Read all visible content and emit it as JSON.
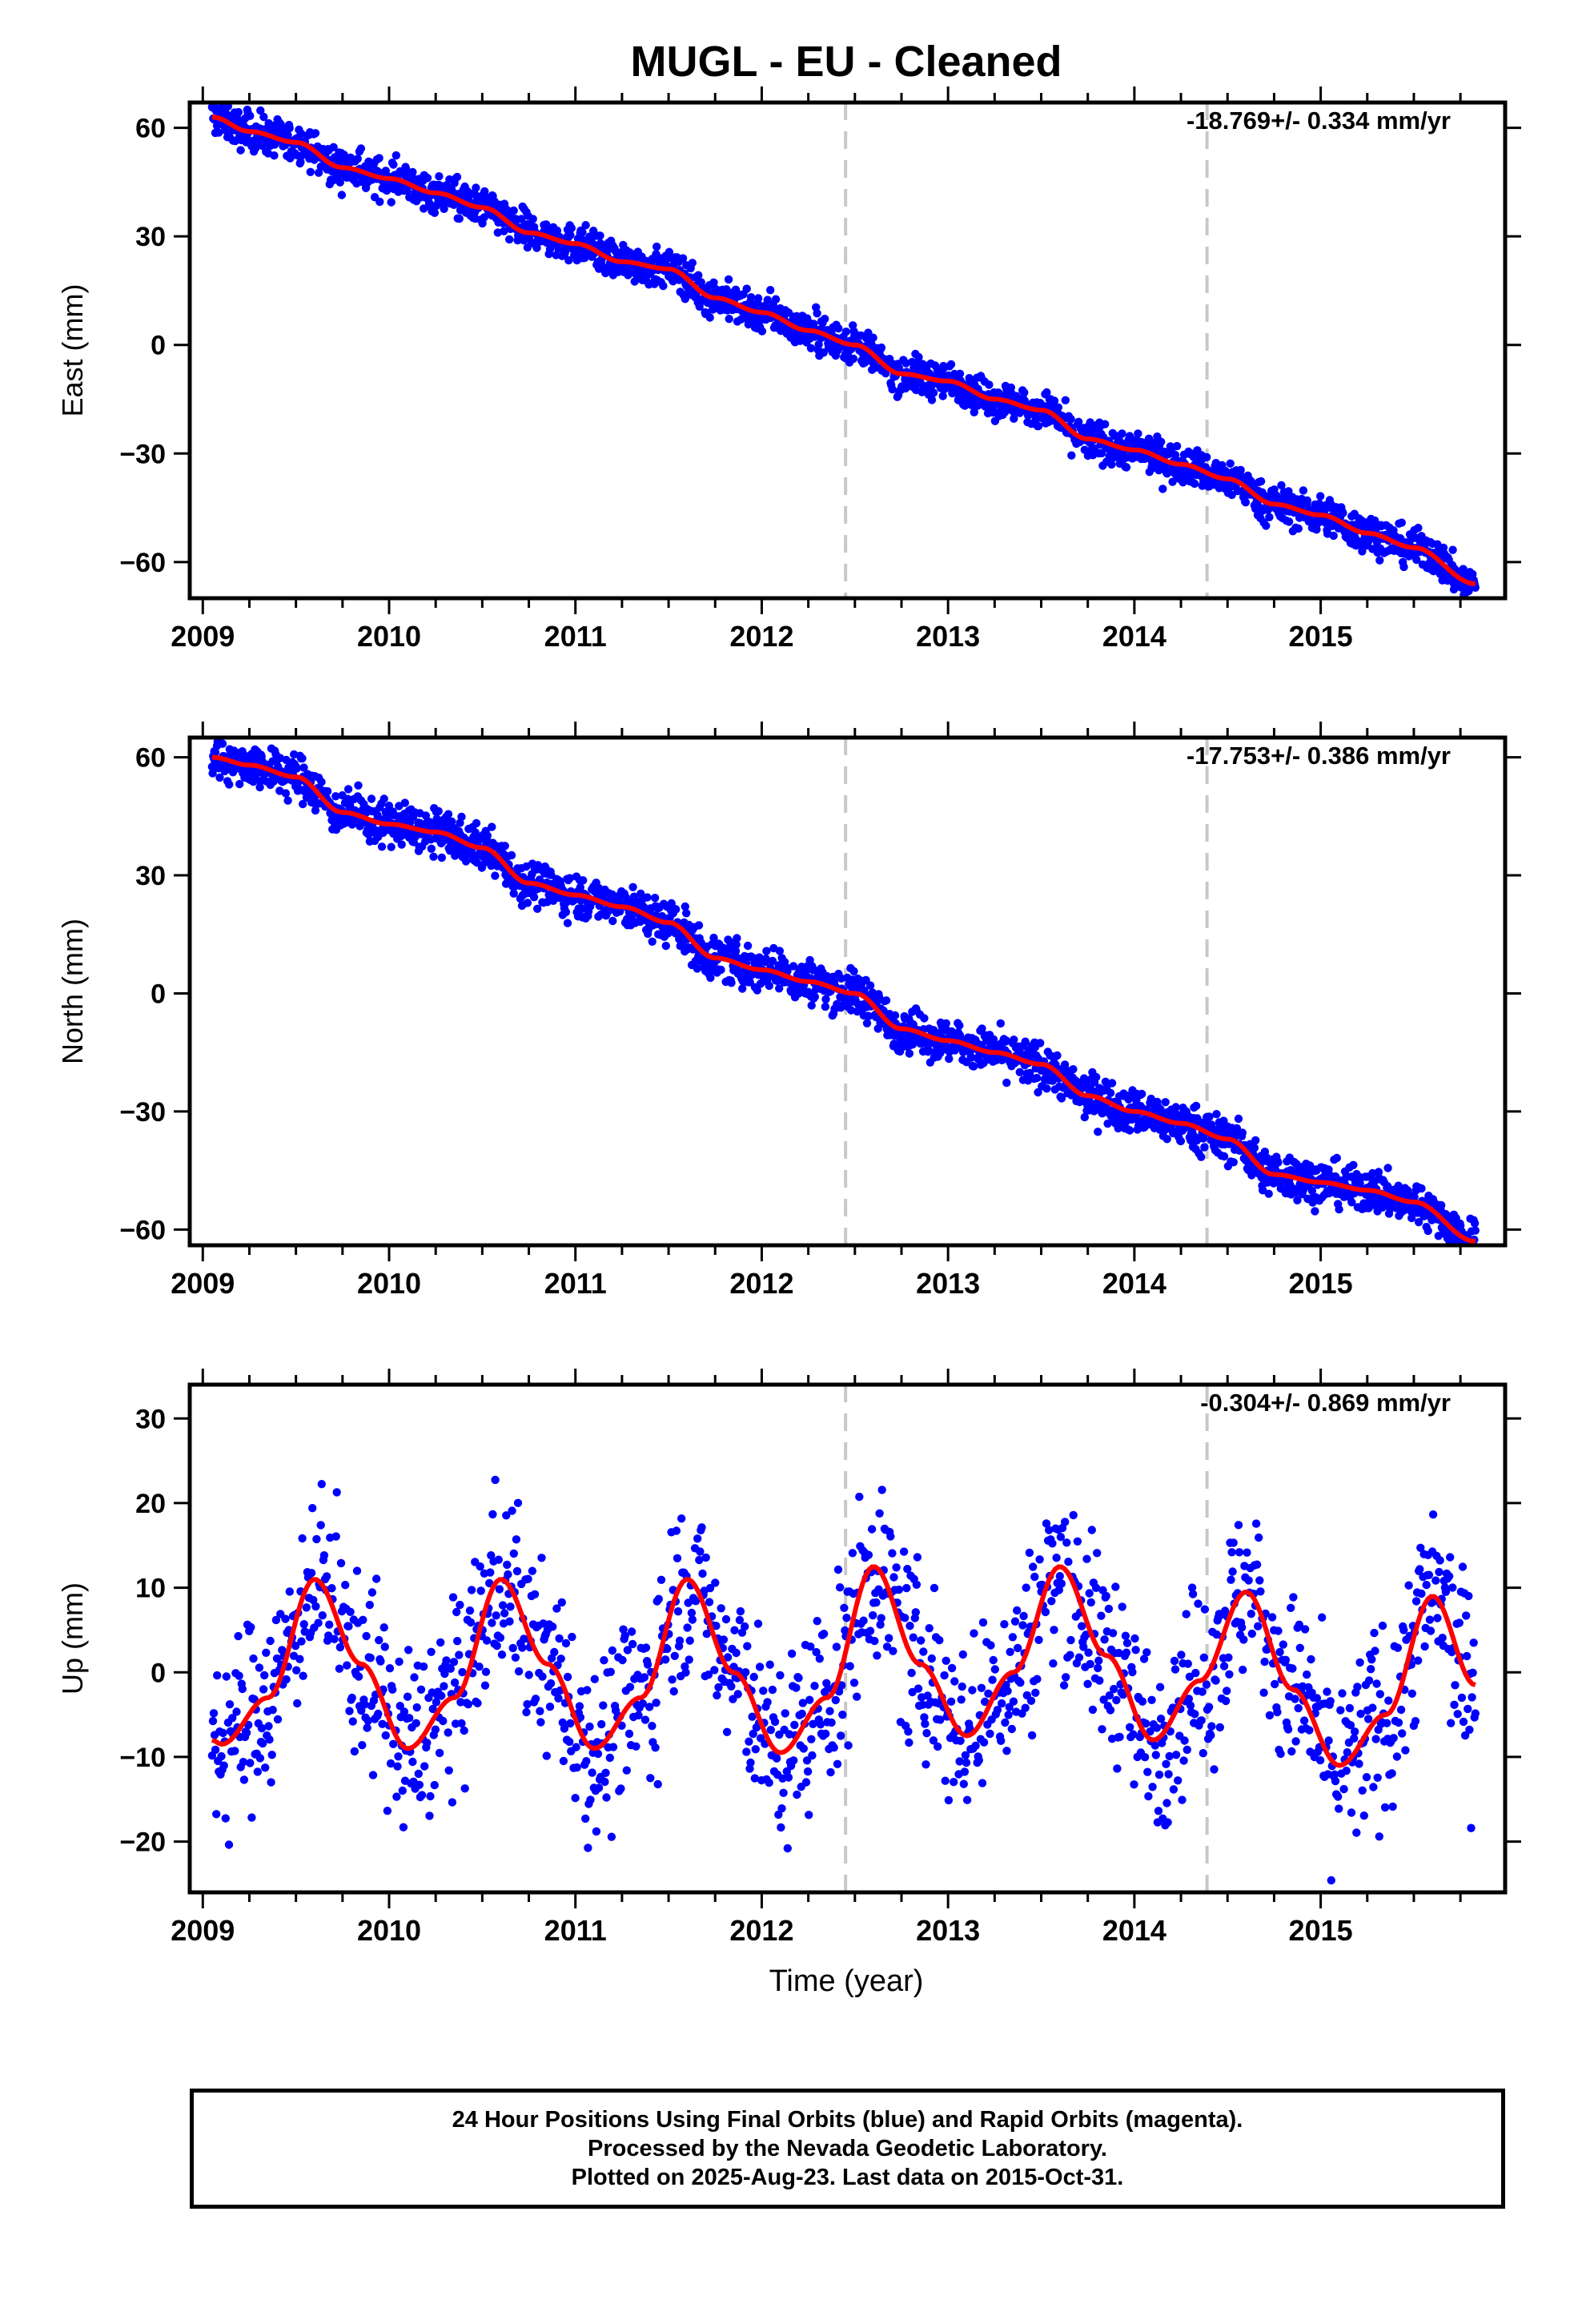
{
  "figure": {
    "title": "MUGL  - EU - Cleaned",
    "xlabel": "Time (year)"
  },
  "colors": {
    "points": "#0000ff",
    "fit": "#ff0000",
    "breaks": "#c8c8c8",
    "frame": "#000000"
  },
  "footer": {
    "line1": "24 Hour Positions Using Final Orbits (blue) and Rapid Orbits (magenta).",
    "line2": "Processed by the Nevada Geodetic Laboratory.",
    "line3": "Plotted on 2025-Aug-23. Last data on 2015-Oct-31."
  },
  "chart_data": [
    {
      "type": "scatter",
      "ylabel": "East (mm)",
      "rate_label": "-18.769+/- 0.334 mm/yr",
      "xlim": [
        2008.93,
        2015.99
      ],
      "ylim": [
        -70,
        67
      ],
      "yticks": [
        60,
        30,
        0,
        -30,
        -60
      ],
      "ytick_labels": [
        "60",
        "30",
        "0",
        "−30",
        "−60"
      ],
      "xticks": [
        2009,
        2010,
        2011,
        2012,
        2013,
        2014,
        2015
      ],
      "xtick_labels": [
        "2009",
        "2010",
        "2011",
        "2012",
        "2013",
        "2014",
        "2015"
      ],
      "breaks": [
        2012.45,
        2014.39
      ],
      "data_range": [
        2009.05,
        2015.83
      ],
      "series": [
        {
          "x": [
            2009.05,
            2009.25,
            2009.5,
            2009.75,
            2010.0,
            2010.25,
            2010.5,
            2010.75,
            2011.0,
            2011.25,
            2011.5,
            2011.75,
            2012.0,
            2012.25,
            2012.5,
            2012.75,
            2013.0,
            2013.25,
            2013.5,
            2013.75,
            2014.0,
            2014.25,
            2014.5,
            2014.75,
            2015.0,
            2015.25,
            2015.5,
            2015.83
          ],
          "y": [
            63,
            59,
            56,
            49,
            46,
            42,
            38,
            31,
            28,
            23,
            21,
            13,
            9,
            4,
            0,
            -8,
            -10,
            -15,
            -18,
            -26,
            -29,
            -33,
            -37,
            -44,
            -47,
            -52,
            -56,
            -66
          ],
          "scatter": 2.6
        }
      ]
    },
    {
      "type": "scatter",
      "ylabel": "North (mm)",
      "rate_label": "-17.753+/- 0.386 mm/yr",
      "xlim": [
        2008.93,
        2015.99
      ],
      "ylim": [
        -64,
        65
      ],
      "yticks": [
        60,
        30,
        0,
        -30,
        -60
      ],
      "ytick_labels": [
        "60",
        "30",
        "0",
        "−30",
        "−60"
      ],
      "xticks": [
        2009,
        2010,
        2011,
        2012,
        2013,
        2014,
        2015
      ],
      "xtick_labels": [
        "2009",
        "2010",
        "2011",
        "2012",
        "2013",
        "2014",
        "2015"
      ],
      "breaks": [
        2012.45,
        2014.39
      ],
      "data_range": [
        2009.05,
        2015.83
      ],
      "series": [
        {
          "x": [
            2009.05,
            2009.25,
            2009.5,
            2009.75,
            2010.0,
            2010.25,
            2010.5,
            2010.75,
            2011.0,
            2011.25,
            2011.5,
            2011.75,
            2012.0,
            2012.25,
            2012.5,
            2012.75,
            2013.0,
            2013.25,
            2013.5,
            2013.75,
            2014.0,
            2014.25,
            2014.5,
            2014.75,
            2015.0,
            2015.25,
            2015.5,
            2015.83
          ],
          "y": [
            60,
            58,
            55,
            46,
            43,
            41,
            37,
            28,
            25,
            22,
            18,
            9,
            6,
            3,
            0,
            -9,
            -12,
            -15,
            -18,
            -26,
            -30,
            -33,
            -37,
            -46,
            -48,
            -50,
            -53,
            -63
          ],
          "scatter": 2.8
        }
      ]
    },
    {
      "type": "scatter",
      "ylabel": "Up (mm)",
      "rate_label": "-0.304+/- 0.869 mm/yr",
      "xlim": [
        2008.93,
        2015.99
      ],
      "ylim": [
        -26,
        34
      ],
      "yticks": [
        30,
        20,
        10,
        0,
        -10,
        -20
      ],
      "ytick_labels": [
        "30",
        "20",
        "10",
        "0",
        "−10",
        "−20"
      ],
      "xticks": [
        2009,
        2010,
        2011,
        2012,
        2013,
        2014,
        2015
      ],
      "xtick_labels": [
        "2009",
        "2010",
        "2011",
        "2012",
        "2013",
        "2014",
        "2015"
      ],
      "breaks": [
        2012.45,
        2014.39
      ],
      "data_range": [
        2009.05,
        2015.83
      ],
      "series": [
        {
          "x": [
            2009.05,
            2009.1,
            2009.35,
            2009.6,
            2009.85,
            2010.1,
            2010.35,
            2010.6,
            2010.85,
            2011.1,
            2011.35,
            2011.6,
            2011.85,
            2012.1,
            2012.35,
            2012.6,
            2012.85,
            2013.1,
            2013.35,
            2013.6,
            2013.85,
            2014.1,
            2014.35,
            2014.6,
            2014.85,
            2015.1,
            2015.35,
            2015.6,
            2015.83
          ],
          "y": [
            -8,
            -8.5,
            -3,
            11,
            1,
            -9,
            -3,
            11,
            1,
            -9,
            -3,
            11,
            0,
            -9.5,
            -3,
            12.5,
            1,
            -7.5,
            0,
            12.5,
            2,
            -8,
            -1,
            9.5,
            -2,
            -11,
            -5,
            9,
            -1.5
          ],
          "scatter": 5.5
        }
      ]
    }
  ]
}
